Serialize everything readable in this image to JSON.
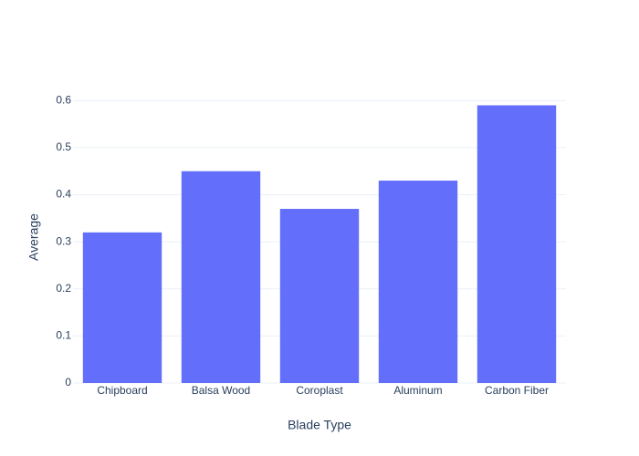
{
  "chart_data": {
    "type": "bar",
    "x_label": "Blade Type",
    "y_label": "Average",
    "categories": [
      "Chipboard",
      "Balsa Wood",
      "Coroplast",
      "Aluminum",
      "Carbon Fiber"
    ],
    "values": [
      0.32,
      0.45,
      0.37,
      0.43,
      0.59
    ],
    "color": "#636efa",
    "ylim": [
      0,
      0.62
    ],
    "yticks": [
      0,
      0.1,
      0.2,
      0.3,
      0.4,
      0.5,
      0.6
    ],
    "grid": true
  }
}
